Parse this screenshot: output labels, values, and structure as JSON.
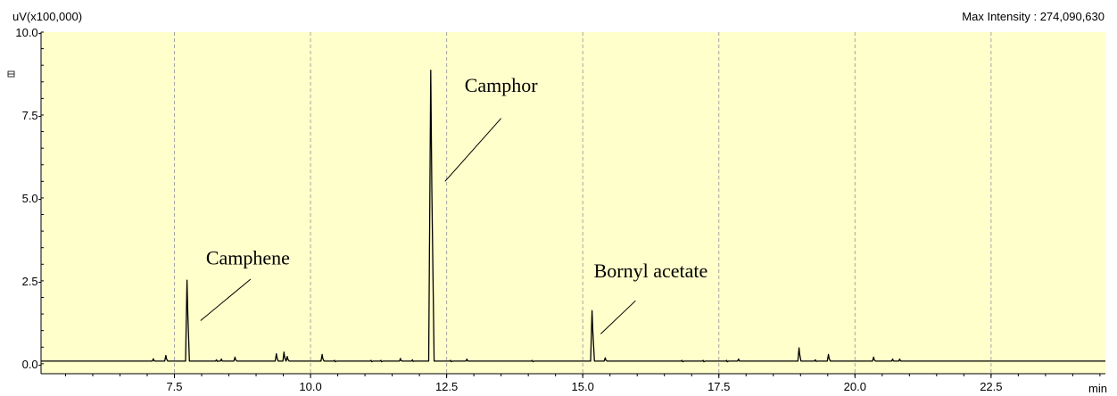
{
  "chart_data": {
    "type": "line",
    "y_unit_label": "uV(x100,000)",
    "x_unit_label": "min",
    "max_intensity_text": "Max Intensity : 274,090,630",
    "xlim": [
      5.05,
      24.6
    ],
    "ylim": [
      -0.3,
      10.0
    ],
    "x_ticks": [
      "7.5",
      "10.0",
      "12.5",
      "15.0",
      "17.5",
      "20.0",
      "22.5"
    ],
    "x_tick_values": [
      7.5,
      10.0,
      12.5,
      15.0,
      17.5,
      20.0,
      22.5
    ],
    "y_ticks": [
      "0.0-",
      "2.5-",
      "5.0-",
      "7.5-",
      "10.0-"
    ],
    "y_tick_values": [
      0.0,
      2.5,
      5.0,
      7.5,
      10.0
    ],
    "vertical_grid": "dashed",
    "baseline": 0.08,
    "peaks": [
      {
        "rt": 7.12,
        "height": 0.15
      },
      {
        "rt": 7.35,
        "height": 0.25
      },
      {
        "rt": 7.74,
        "height": 2.52
      },
      {
        "rt": 8.28,
        "height": 0.12
      },
      {
        "rt": 8.37,
        "height": 0.14
      },
      {
        "rt": 8.62,
        "height": 0.2
      },
      {
        "rt": 9.38,
        "height": 0.3
      },
      {
        "rt": 9.52,
        "height": 0.35
      },
      {
        "rt": 9.58,
        "height": 0.22
      },
      {
        "rt": 10.22,
        "height": 0.28
      },
      {
        "rt": 10.45,
        "height": 0.1
      },
      {
        "rt": 11.12,
        "height": 0.1
      },
      {
        "rt": 11.3,
        "height": 0.1
      },
      {
        "rt": 11.66,
        "height": 0.16
      },
      {
        "rt": 11.88,
        "height": 0.12
      },
      {
        "rt": 12.22,
        "height": 8.85
      },
      {
        "rt": 12.58,
        "height": 0.1
      },
      {
        "rt": 12.88,
        "height": 0.14
      },
      {
        "rt": 14.08,
        "height": 0.1
      },
      {
        "rt": 15.18,
        "height": 1.6
      },
      {
        "rt": 15.42,
        "height": 0.18
      },
      {
        "rt": 16.83,
        "height": 0.1
      },
      {
        "rt": 17.22,
        "height": 0.1
      },
      {
        "rt": 17.65,
        "height": 0.1
      },
      {
        "rt": 17.87,
        "height": 0.14
      },
      {
        "rt": 18.98,
        "height": 0.48
      },
      {
        "rt": 19.28,
        "height": 0.12
      },
      {
        "rt": 19.52,
        "height": 0.28
      },
      {
        "rt": 20.35,
        "height": 0.2
      },
      {
        "rt": 20.7,
        "height": 0.14
      },
      {
        "rt": 20.83,
        "height": 0.14
      }
    ],
    "annotations": [
      {
        "text": "Camphene",
        "x": 8.85,
        "y": 3.0,
        "line_from": [
          8.9,
          2.55
        ],
        "line_to": [
          7.98,
          1.3
        ]
      },
      {
        "text": "Camphor",
        "x": 13.5,
        "y": 8.2,
        "line_from": [
          13.5,
          7.4
        ],
        "line_to": [
          12.47,
          5.5
        ]
      },
      {
        "text": "Bornyl acetate",
        "x": 16.25,
        "y": 2.6,
        "line_from": [
          15.97,
          1.9
        ],
        "line_to": [
          15.33,
          0.9
        ]
      }
    ],
    "colors": {
      "plot_background": "#ffffcc",
      "trace": "#000000",
      "grid": "#a6a6a6",
      "axis": "#000000"
    }
  }
}
